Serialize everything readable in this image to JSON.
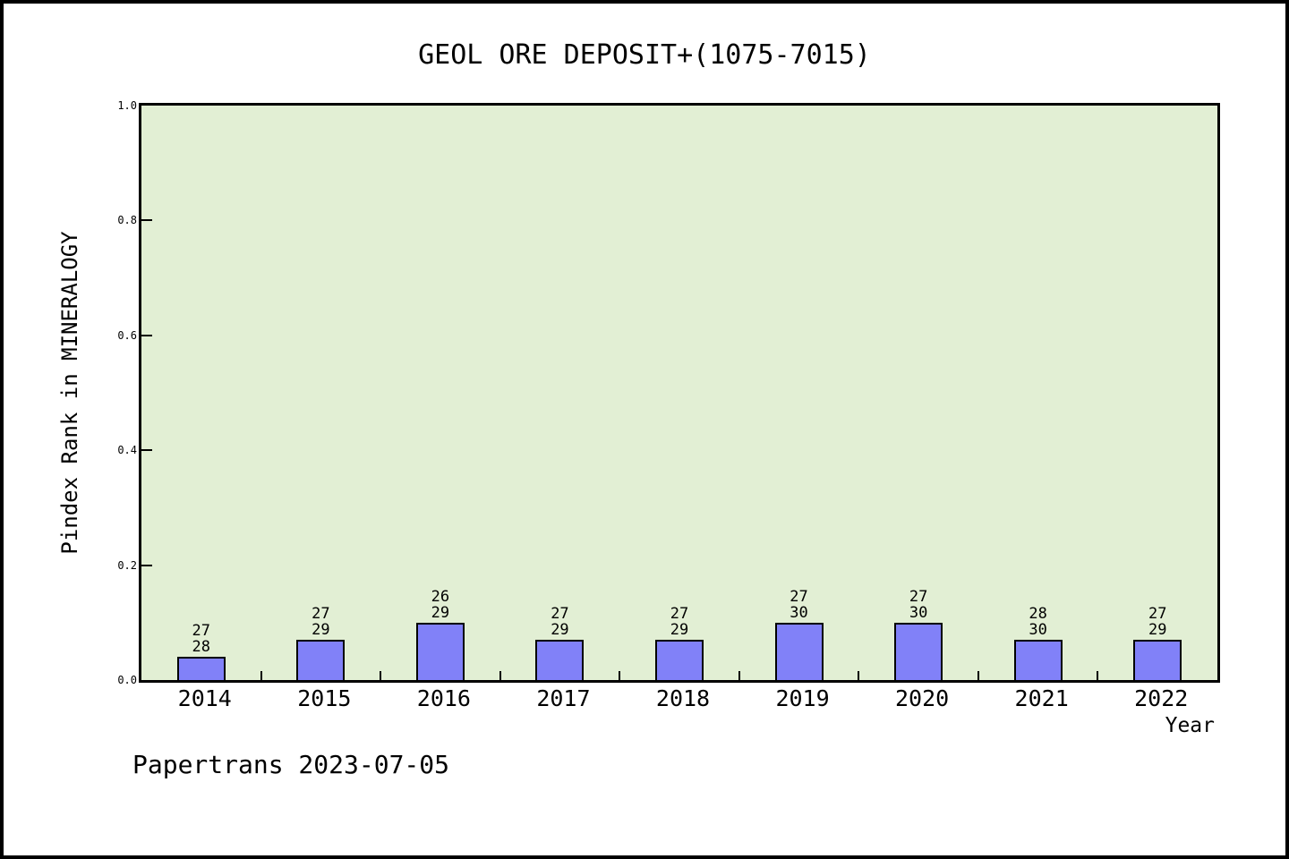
{
  "title": "GEOL ORE DEPOSIT+(1075-7015)",
  "footer": "Papertrans 2023-07-05",
  "colors": {
    "plot_background": "#e2efd4",
    "bar_fill": "#8181f8",
    "bar_edge": "#000000",
    "axis": "#000000",
    "page_background": "#ffffff",
    "text": "#000000"
  },
  "chart_data": {
    "type": "bar",
    "title": "GEOL ORE DEPOSIT+(1075-7015)",
    "xlabel": "Year",
    "ylabel": "Pindex Rank in MINERALOGY",
    "ylim": [
      0.0,
      1.0
    ],
    "ytick_labels": [
      "0.0",
      "0.2",
      "0.4",
      "0.6",
      "0.8",
      "1.0"
    ],
    "grid": "off",
    "legend": "none",
    "categories": [
      "2014",
      "2015",
      "2016",
      "2017",
      "2018",
      "2019",
      "2020",
      "2021",
      "2022"
    ],
    "values": [
      0.04,
      0.07,
      0.1,
      0.07,
      0.07,
      0.1,
      0.1,
      0.07,
      0.07
    ],
    "bars": [
      {
        "year": "2014",
        "value": 0.04,
        "label_top": "27",
        "label_bottom": "28"
      },
      {
        "year": "2015",
        "value": 0.07,
        "label_top": "27",
        "label_bottom": "29"
      },
      {
        "year": "2016",
        "value": 0.1,
        "label_top": "26",
        "label_bottom": "29"
      },
      {
        "year": "2017",
        "value": 0.07,
        "label_top": "27",
        "label_bottom": "29"
      },
      {
        "year": "2018",
        "value": 0.07,
        "label_top": "27",
        "label_bottom": "29"
      },
      {
        "year": "2019",
        "value": 0.1,
        "label_top": "27",
        "label_bottom": "30"
      },
      {
        "year": "2020",
        "value": 0.1,
        "label_top": "27",
        "label_bottom": "30"
      },
      {
        "year": "2021",
        "value": 0.07,
        "label_top": "28",
        "label_bottom": "30"
      },
      {
        "year": "2022",
        "value": 0.07,
        "label_top": "27",
        "label_bottom": "29"
      }
    ]
  }
}
